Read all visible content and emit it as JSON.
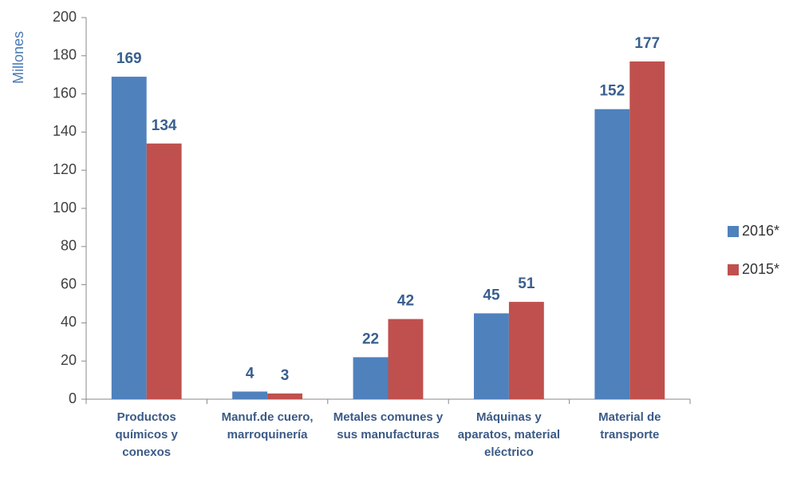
{
  "chart_data": {
    "type": "bar",
    "y_label": "Millones",
    "categories": [
      "Productos químicos y conexos",
      "Manuf.de cuero, marroquinería",
      "Metales comunes y sus manufacturas",
      "Máquinas y aparatos, material eléctrico",
      "Material de transporte"
    ],
    "series": [
      {
        "name": "2016*",
        "color": "#4f81bd",
        "values": [
          169,
          4,
          22,
          45,
          152
        ]
      },
      {
        "name": "2015*",
        "color": "#c0504d",
        "values": [
          134,
          3,
          42,
          51,
          177
        ]
      }
    ],
    "ylim": [
      0,
      200
    ],
    "yticks": [
      0,
      20,
      40,
      60,
      80,
      100,
      120,
      140,
      160,
      180,
      200
    ],
    "grid": false,
    "legend": "right"
  }
}
